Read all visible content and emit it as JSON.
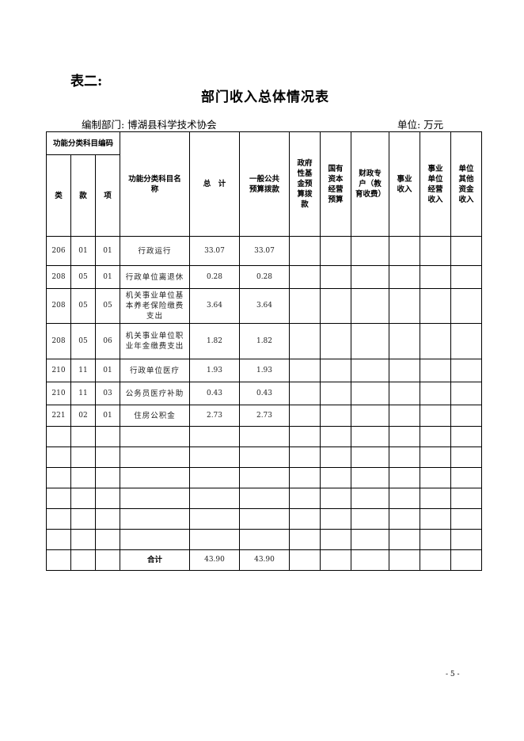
{
  "doc": {
    "label": "表二:",
    "title": "部门收入总体情况表",
    "department": "编制部门: 博湖县科学技术协会",
    "unit": "单位: 万元",
    "page_number": "- 5 -"
  },
  "table": {
    "headers": {
      "code_group": "功能分类科目编码",
      "lei": "类",
      "kuan": "款",
      "xiang": "项",
      "name": "功能分类科目名称",
      "total": "总　计",
      "general_budget": "一般公共预算拨款",
      "gov_fund": "政府性基金预算拨款",
      "state_capital": "国有资本经营预算",
      "fiscal_special": "财政专户（教育收费）",
      "business_income": "事业收入",
      "business_unit_operating": "事业单位经营收入",
      "other_income": "单位其他资金收入"
    },
    "rows": [
      {
        "lei": "206",
        "kuan": "01",
        "xiang": "01",
        "name": "行政运行",
        "total": "33.07",
        "general": "33.07"
      },
      {
        "lei": "208",
        "kuan": "05",
        "xiang": "01",
        "name": "行政单位离退休",
        "total": "0.28",
        "general": "0.28"
      },
      {
        "lei": "208",
        "kuan": "05",
        "xiang": "05",
        "name": "机关事业单位基本养老保险缴费支出",
        "total": "3.64",
        "general": "3.64"
      },
      {
        "lei": "208",
        "kuan": "05",
        "xiang": "06",
        "name": "机关事业单位职业年金缴费支出",
        "total": "1.82",
        "general": "1.82"
      },
      {
        "lei": "210",
        "kuan": "11",
        "xiang": "01",
        "name": "行政单位医疗",
        "total": "1.93",
        "general": "1.93"
      },
      {
        "lei": "210",
        "kuan": "11",
        "xiang": "03",
        "name": "公务员医疗补助",
        "total": "0.43",
        "general": "0.43"
      },
      {
        "lei": "221",
        "kuan": "02",
        "xiang": "01",
        "name": "住房公积金",
        "total": "2.73",
        "general": "2.73"
      }
    ],
    "total_row": {
      "label": "合计",
      "total": "43.90",
      "general": "43.90"
    }
  }
}
